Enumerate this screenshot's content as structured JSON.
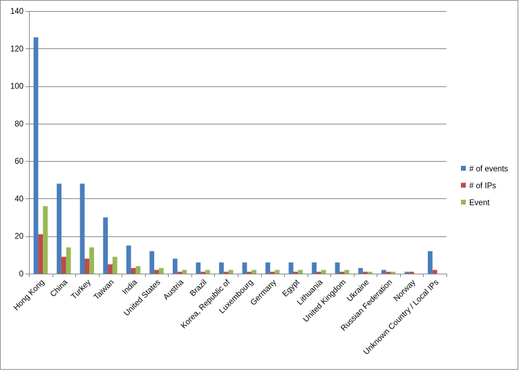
{
  "chart_data": {
    "type": "bar",
    "categories": [
      "Hong Kong",
      "China",
      "Turkey",
      "Taiwan",
      "India",
      "United States",
      "Austria",
      "Brazil",
      "Korea, Republic of",
      "Luxembourg",
      "Germany",
      "Egypt",
      "Lithuania",
      "United Kingdom",
      "Ukraine",
      "Russian Federation",
      "Norway",
      "Unknown Country / Local IPs"
    ],
    "series": [
      {
        "name": "# of events",
        "color": "#4a7ebb",
        "values": [
          126,
          48,
          48,
          30,
          15,
          12,
          8,
          6,
          6,
          6,
          6,
          6,
          6,
          6,
          3,
          2,
          1,
          12
        ]
      },
      {
        "name": "# of IPs",
        "color": "#be4b48",
        "values": [
          21,
          9,
          8,
          5,
          3,
          2,
          1,
          1,
          1,
          1,
          1,
          1,
          1,
          1,
          1,
          1,
          1,
          2
        ]
      },
      {
        "name": "Event",
        "color": "#98b954",
        "values": [
          36,
          14,
          14,
          9,
          4,
          3,
          2,
          2,
          2,
          2,
          2,
          2,
          2,
          2,
          1,
          1,
          0,
          0
        ]
      }
    ],
    "yticks": [
      0,
      20,
      40,
      60,
      80,
      100,
      120,
      140
    ],
    "ylim": [
      0,
      140
    ],
    "grid": true,
    "legend_position": "right"
  }
}
